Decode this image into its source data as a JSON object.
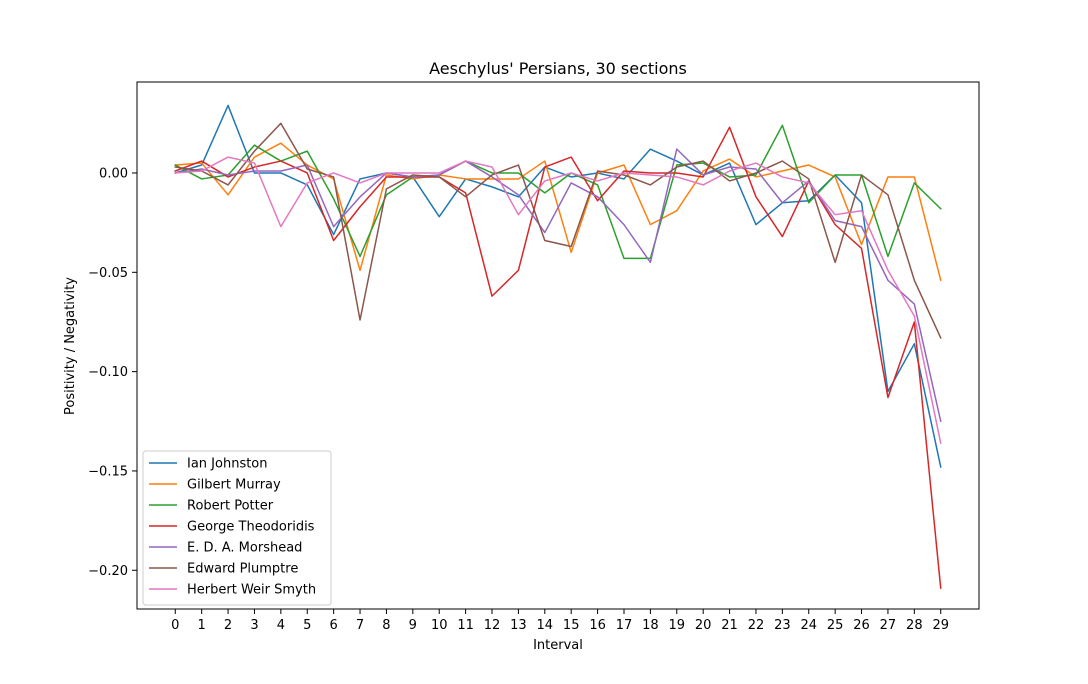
{
  "chart_data": {
    "type": "line",
    "title": "Aeschylus' Persians, 30 sections",
    "xlabel": "Interval",
    "ylabel": "Positivity / Negativity",
    "x": [
      0,
      1,
      2,
      3,
      4,
      5,
      6,
      7,
      8,
      9,
      10,
      11,
      12,
      13,
      14,
      15,
      16,
      17,
      18,
      19,
      20,
      21,
      22,
      23,
      24,
      25,
      26,
      27,
      28,
      29
    ],
    "xlim": [
      -1.45,
      30.45
    ],
    "ylim": [
      -0.2195,
      0.0458
    ],
    "yticks": [
      0.0,
      -0.05,
      -0.1,
      -0.15,
      -0.2
    ],
    "ytick_labels": [
      "0.00",
      "−0.05",
      "−0.10",
      "−0.15",
      "−0.20"
    ],
    "grid": false,
    "legend_position": "lower-left",
    "series": [
      {
        "name": "Ian Johnston",
        "color": "#1f77b4",
        "values": [
          0.0,
          0.004,
          0.034,
          0.0,
          0.0,
          -0.006,
          -0.031,
          -0.003,
          0.0,
          -0.002,
          -0.022,
          -0.003,
          -0.007,
          -0.012,
          0.003,
          -0.002,
          0.0,
          -0.003,
          0.012,
          0.006,
          -0.001,
          0.005,
          -0.026,
          -0.015,
          -0.014,
          -0.001,
          -0.015,
          -0.11,
          -0.086,
          -0.148
        ]
      },
      {
        "name": "Gilbert Murray",
        "color": "#ff7f0e",
        "values": [
          0.004,
          0.005,
          -0.011,
          0.008,
          0.015,
          0.004,
          -0.003,
          -0.049,
          -0.001,
          -0.003,
          -0.001,
          -0.003,
          -0.003,
          -0.003,
          0.006,
          -0.04,
          0.0,
          0.004,
          -0.026,
          -0.019,
          0.001,
          0.007,
          -0.002,
          0.001,
          0.004,
          -0.002,
          -0.036,
          -0.002,
          -0.002,
          -0.054
        ]
      },
      {
        "name": "Robert Potter",
        "color": "#2ca02c",
        "values": [
          0.004,
          -0.003,
          -0.001,
          0.014,
          0.006,
          0.011,
          -0.013,
          -0.042,
          -0.011,
          -0.002,
          -0.001,
          0.006,
          0.0,
          0.0,
          -0.01,
          0.0,
          -0.006,
          -0.043,
          -0.043,
          0.004,
          0.005,
          -0.002,
          -0.001,
          0.024,
          -0.015,
          -0.001,
          -0.001,
          -0.042,
          -0.005,
          -0.018
        ]
      },
      {
        "name": "George Theodoridis",
        "color": "#d62728",
        "values": [
          0.001,
          0.006,
          -0.002,
          0.003,
          0.006,
          0.0,
          -0.034,
          -0.017,
          -0.002,
          -0.002,
          -0.002,
          -0.01,
          -0.062,
          -0.049,
          0.003,
          0.008,
          -0.014,
          0.001,
          0.0,
          0.0,
          -0.002,
          0.023,
          -0.012,
          -0.032,
          -0.004,
          -0.026,
          -0.038,
          -0.113,
          -0.075,
          -0.209
        ]
      },
      {
        "name": "E. D. A. Morshead",
        "color": "#9467bd",
        "values": [
          0.0,
          0.002,
          -0.001,
          0.001,
          0.001,
          0.004,
          -0.027,
          -0.012,
          0.0,
          -0.002,
          -0.001,
          0.006,
          -0.002,
          -0.011,
          -0.03,
          -0.005,
          -0.012,
          -0.026,
          -0.045,
          0.012,
          -0.001,
          0.003,
          0.002,
          -0.015,
          -0.004,
          -0.024,
          -0.027,
          -0.054,
          -0.066,
          -0.125
        ]
      },
      {
        "name": "Edward Plumptre",
        "color": "#8c564b",
        "values": [
          0.003,
          0.001,
          -0.006,
          0.011,
          0.025,
          0.002,
          -0.002,
          -0.074,
          -0.008,
          -0.001,
          -0.002,
          -0.012,
          -0.001,
          0.004,
          -0.034,
          -0.037,
          0.001,
          -0.001,
          -0.006,
          0.003,
          0.006,
          -0.004,
          0.0,
          0.006,
          -0.003,
          -0.045,
          -0.001,
          -0.011,
          -0.054,
          -0.083
        ]
      },
      {
        "name": "Herbert Weir Smyth",
        "color": "#e377c2",
        "values": [
          0.0,
          0.001,
          0.008,
          0.005,
          -0.027,
          -0.005,
          0.0,
          -0.005,
          0.0,
          0.0,
          0.0,
          0.006,
          0.003,
          -0.021,
          -0.004,
          0.0,
          -0.004,
          0.0,
          -0.001,
          -0.002,
          -0.006,
          0.001,
          0.005,
          -0.002,
          -0.005,
          -0.021,
          -0.019,
          -0.049,
          -0.072,
          -0.136
        ]
      }
    ]
  }
}
